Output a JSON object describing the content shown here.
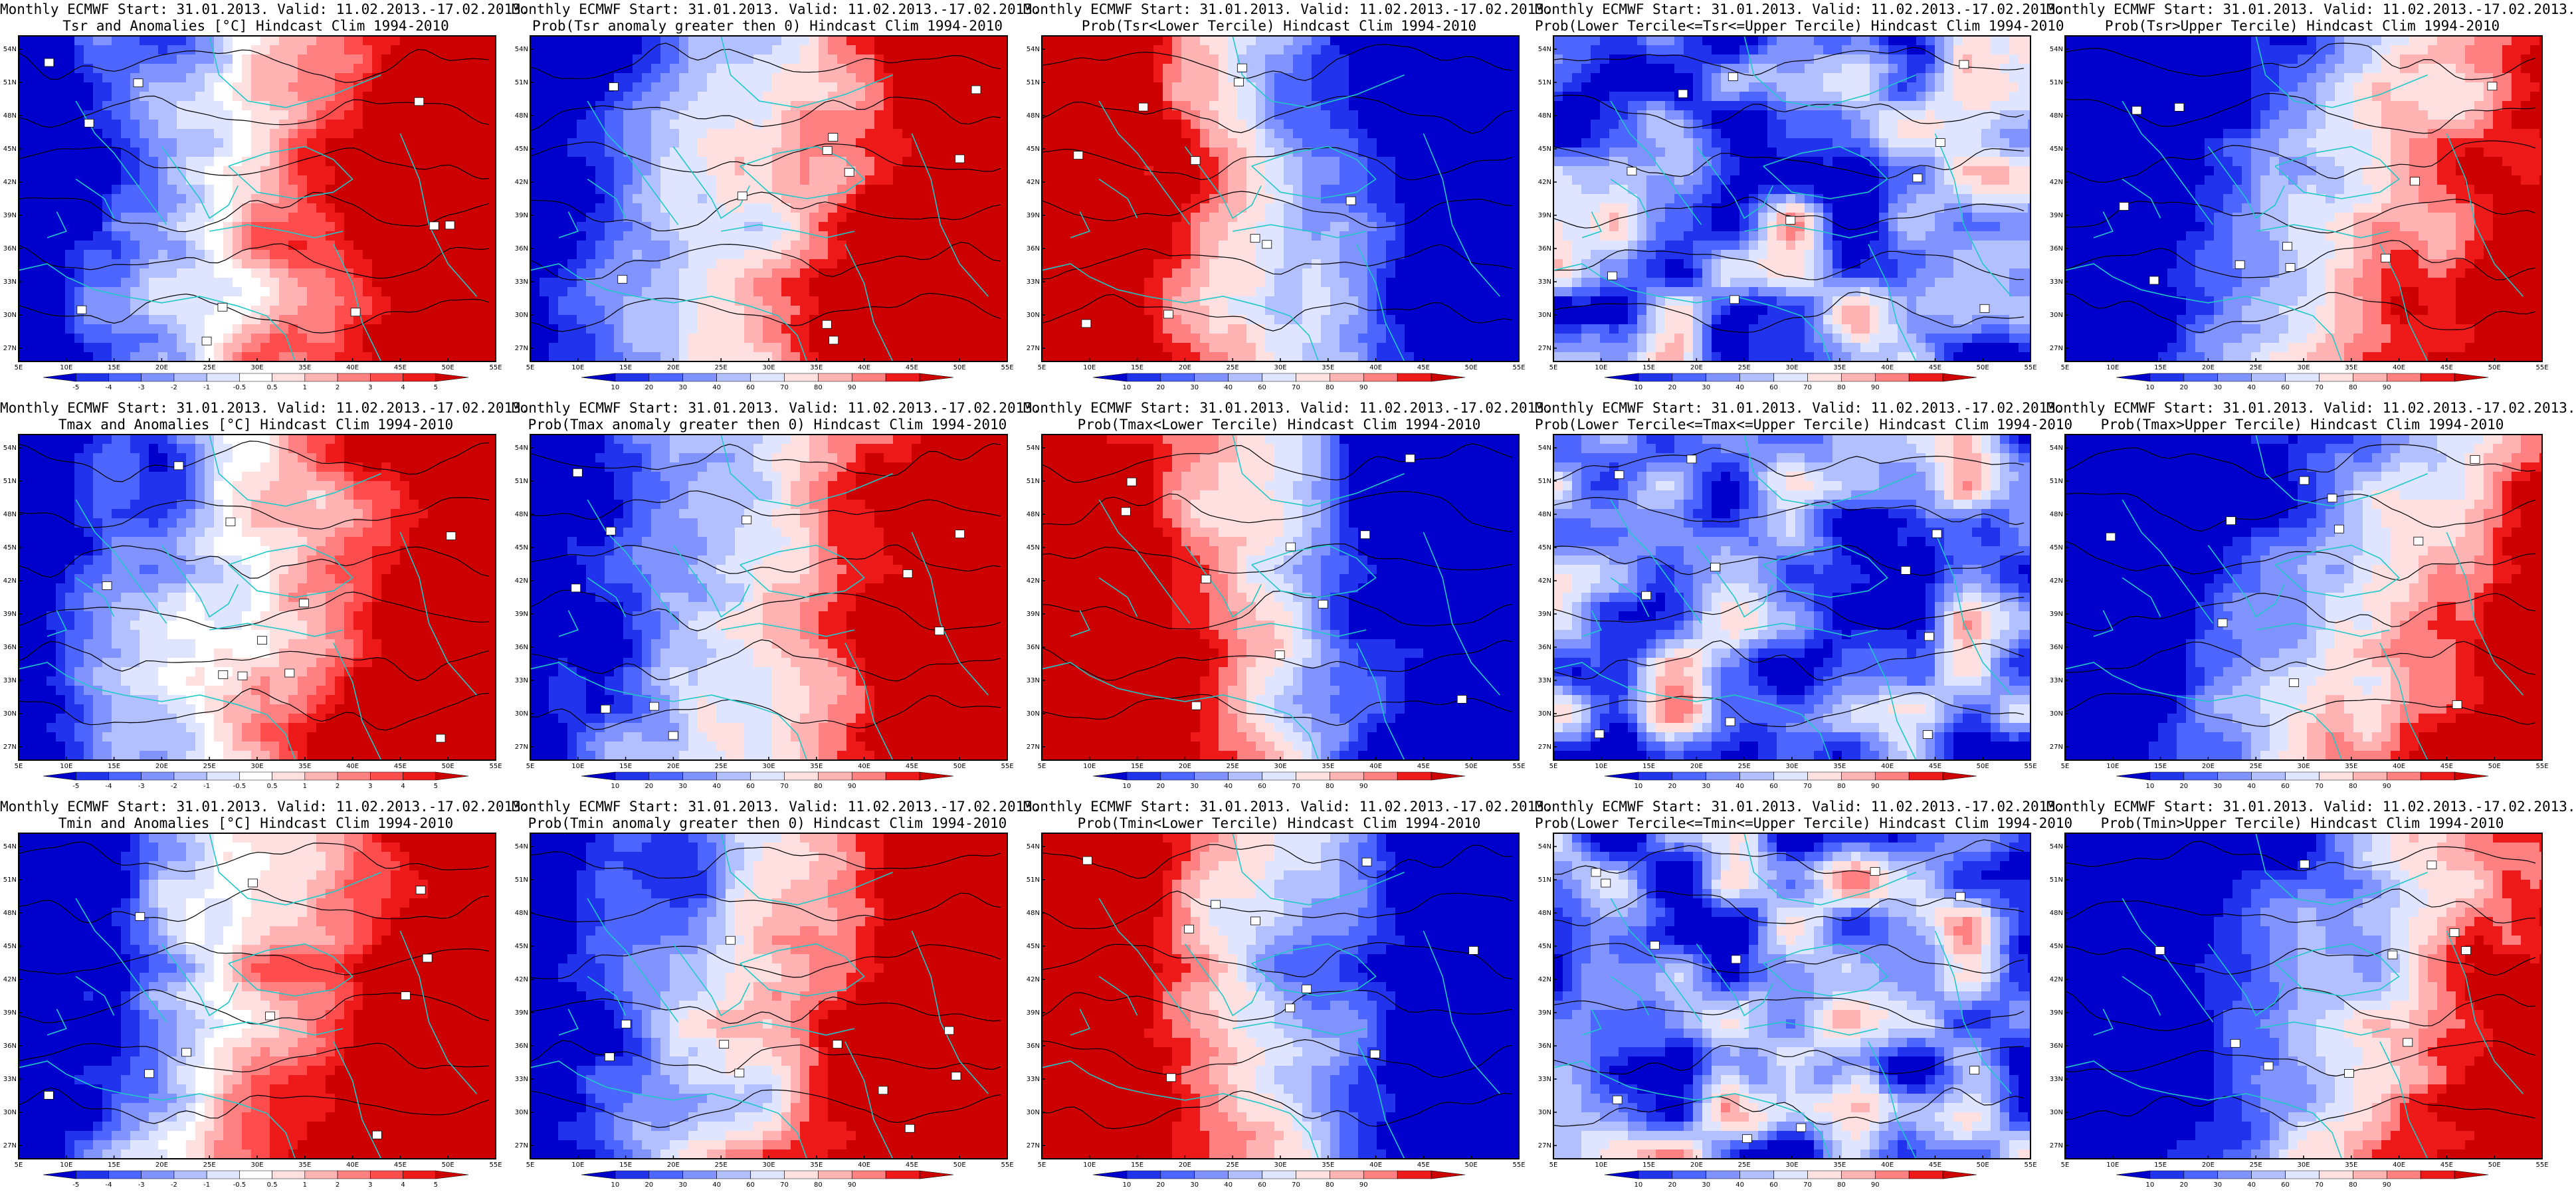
{
  "figure": {
    "panels": [
      {
        "title_line1": "Monthly ECMWF Start: 31.01.2013. Valid: 11.02.2013.-17.02.2013.",
        "title_line2": "Tsr and Anomalies [°C] Hindcast Clim 1994-2010",
        "type": "anomaly",
        "pattern": "east-warm"
      },
      {
        "title_line1": "Monthly ECMWF Start: 31.01.2013. Valid: 11.02.2013.-17.02.2013.",
        "title_line2": "Prob(Tsr anomaly greater then 0) Hindcast Clim 1994-2010",
        "type": "prob",
        "pattern": "east-warm"
      },
      {
        "title_line1": "Monthly ECMWF Start: 31.01.2013. Valid: 11.02.2013.-17.02.2013.",
        "title_line2": "Prob(Tsr<Lower Tercile) Hindcast Clim 1994-2010",
        "type": "prob",
        "pattern": "west-warm"
      },
      {
        "title_line1": "Monthly ECMWF Start: 31.01.2013. Valid: 11.02.2013.-17.02.2013.",
        "title_line2": "Prob(Lower Tercile<=Tsr<=Upper Tercile) Hindcast Clim 1994-2010",
        "type": "prob",
        "pattern": "mixed"
      },
      {
        "title_line1": "Monthly ECMWF Start: 31.01.2013. Valid: 11.02.2013.-17.02.2013.",
        "title_line2": "Prob(Tsr>Upper Tercile) Hindcast Clim 1994-2010",
        "type": "prob",
        "pattern": "west-cold"
      },
      {
        "title_line1": "Monthly ECMWF Start: 31.01.2013. Valid: 11.02.2013.-17.02.2013.",
        "title_line2": "Tmax and Anomalies [°C] Hindcast Clim 1994-2010",
        "type": "anomaly",
        "pattern": "east-warm"
      },
      {
        "title_line1": "Monthly ECMWF Start: 31.01.2013. Valid: 11.02.2013.-17.02.2013.",
        "title_line2": "Prob(Tmax anomaly greater then 0) Hindcast Clim 1994-2010",
        "type": "prob",
        "pattern": "east-warm"
      },
      {
        "title_line1": "Monthly ECMWF Start: 31.01.2013. Valid: 11.02.2013.-17.02.2013.",
        "title_line2": "Prob(Tmax<Lower Tercile) Hindcast Clim 1994-2010",
        "type": "prob",
        "pattern": "west-warm"
      },
      {
        "title_line1": "Monthly ECMWF Start: 31.01.2013. Valid: 11.02.2013.-17.02.2013.",
        "title_line2": "Prob(Lower Tercile<=Tmax<=Upper Tercile) Hindcast Clim 1994-2010",
        "type": "prob",
        "pattern": "mixed"
      },
      {
        "title_line1": "Monthly ECMWF Start: 31.01.2013. Valid: 11.02.2013.-17.02.2013.",
        "title_line2": "Prob(Tmax>Upper Tercile) Hindcast Clim 1994-2010",
        "type": "prob",
        "pattern": "west-cold"
      },
      {
        "title_line1": "Monthly ECMWF Start: 31.01.2013. Valid: 11.02.2013.-17.02.2013.",
        "title_line2": "Tmin and Anomalies [°C] Hindcast Clim 1994-2010",
        "type": "anomaly",
        "pattern": "east-warm"
      },
      {
        "title_line1": "Monthly ECMWF Start: 31.01.2013. Valid: 11.02.2013.-17.02.2013.",
        "title_line2": "Prob(Tmin anomaly greater then 0) Hindcast Clim 1994-2010",
        "type": "prob",
        "pattern": "east-warm"
      },
      {
        "title_line1": "Monthly ECMWF Start: 31.01.2013. Valid: 11.02.2013.-17.02.2013.",
        "title_line2": "Prob(Tmin<Lower Tercile) Hindcast Clim 1994-2010",
        "type": "prob",
        "pattern": "west-warm"
      },
      {
        "title_line1": "Monthly ECMWF Start: 31.01.2013. Valid: 11.02.2013.-17.02.2013.",
        "title_line2": "Prob(Lower Tercile<=Tmin<=Upper Tercile) Hindcast Clim 1994-2010",
        "type": "prob",
        "pattern": "mixed"
      },
      {
        "title_line1": "Monthly ECMWF Start: 31.01.2013. Valid: 11.02.2013.-17.02.2013.",
        "title_line2": "Prob(Tmin>Upper Tercile) Hindcast Clim 1994-2010",
        "type": "prob",
        "pattern": "west-cold"
      }
    ],
    "x_ticks": [
      "5E",
      "10E",
      "15E",
      "20E",
      "25E",
      "30E",
      "35E",
      "40E",
      "45E",
      "50E",
      "55E"
    ],
    "y_ticks": [
      "54N",
      "51N",
      "48N",
      "45N",
      "42N",
      "39N",
      "36N",
      "33N",
      "30N",
      "27N"
    ],
    "anomaly_colorbar_labels": [
      "-5",
      "-4",
      "-3",
      "-2",
      "-1",
      "-0.5",
      "0.5",
      "1",
      "2",
      "3",
      "4",
      "5"
    ],
    "prob_colorbar_labels": [
      "10",
      "20",
      "30",
      "40",
      "60",
      "70",
      "80",
      "90"
    ],
    "anomaly_colors": [
      "#0000cc",
      "#2233ee",
      "#4d66ff",
      "#8093ff",
      "#b3c0ff",
      "#dfe4ff",
      "#ffffff",
      "#ffe0e0",
      "#ffb3b3",
      "#ff8080",
      "#ff4d4d",
      "#ee1a1a",
      "#cc0000"
    ],
    "prob_colors": [
      "#0000cc",
      "#2233ee",
      "#4d66ff",
      "#8093ff",
      "#b3c0ff",
      "#dfe4ff",
      "#ffe0e0",
      "#ffb3b3",
      "#ff8080",
      "#ee1a1a",
      "#cc0000"
    ],
    "coast_color": "#20c8c8",
    "contour_color": "#000000"
  }
}
